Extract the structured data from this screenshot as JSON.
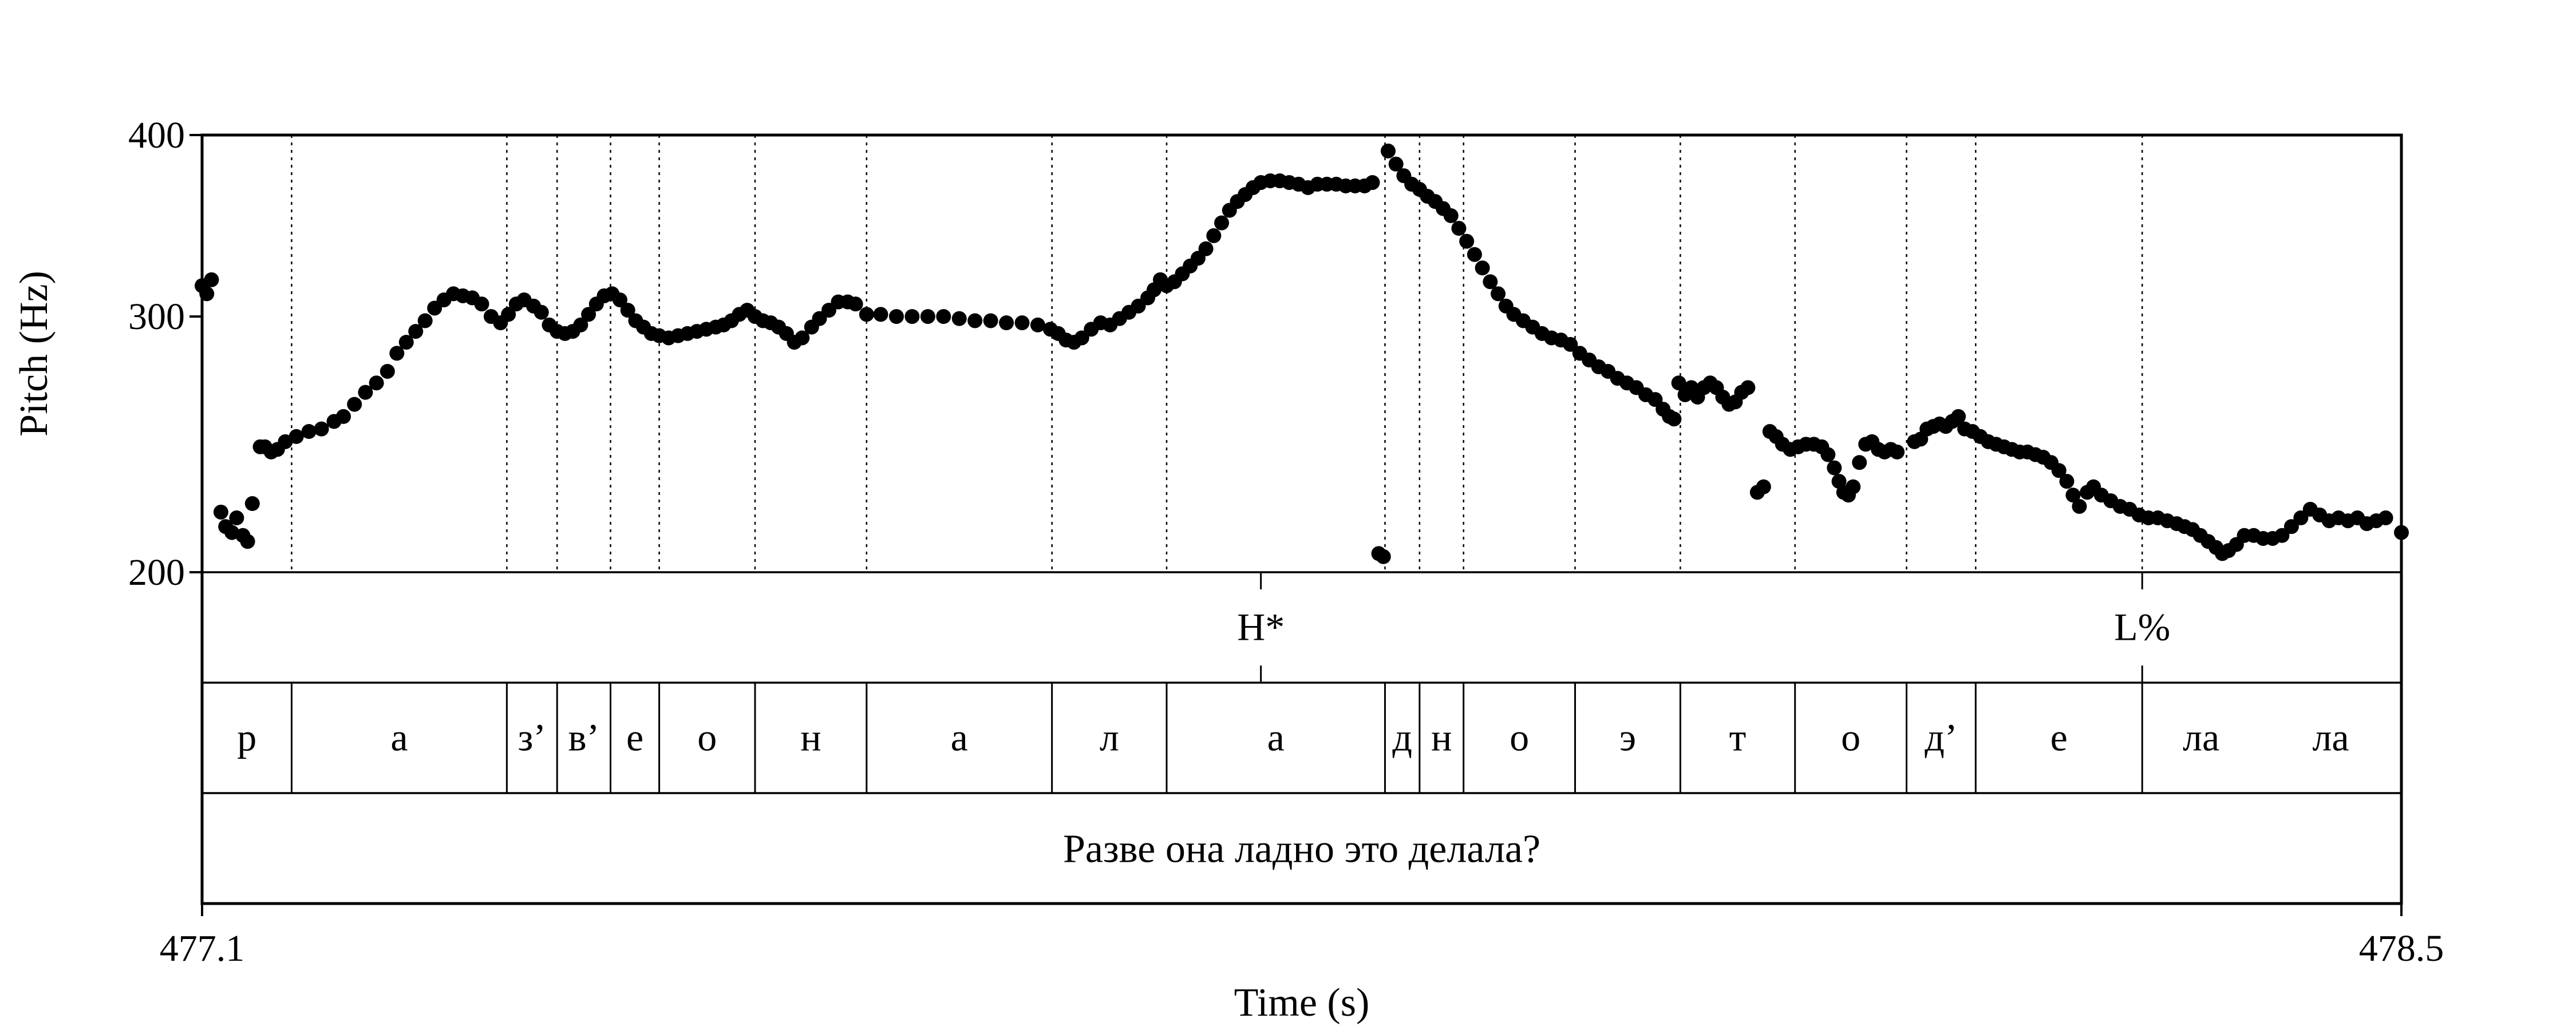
{
  "chart_data": {
    "type": "scatter",
    "xlabel": "Time (s)",
    "ylabel": "Pitch (Hz)",
    "xlim": [
      477.1,
      478.5
    ],
    "ylim": [
      200,
      400
    ],
    "y_scale": "log",
    "y_ticks": [
      200,
      300,
      400
    ],
    "y_tick_labels": [
      "200",
      "300",
      "400"
    ],
    "x_tick_labels": [
      "477.1",
      "478.5"
    ],
    "boundaries": [
      477.157,
      477.294,
      477.326,
      477.36,
      477.391,
      477.452,
      477.523,
      477.641,
      477.714,
      477.853,
      477.875,
      477.903,
      477.974,
      478.041,
      478.114,
      478.185,
      478.229,
      478.335
    ],
    "tones": [
      {
        "label": "H*",
        "time": 477.774
      },
      {
        "label": "L%",
        "time": 478.335
      }
    ],
    "segments": [
      {
        "label": "р",
        "start": 477.1,
        "end": 477.157
      },
      {
        "label": "а",
        "start": 477.157,
        "end": 477.294
      },
      {
        "label": "з’",
        "start": 477.294,
        "end": 477.326
      },
      {
        "label": "в’",
        "start": 477.326,
        "end": 477.36
      },
      {
        "label": "е",
        "start": 477.36,
        "end": 477.391
      },
      {
        "label": "о",
        "start": 477.391,
        "end": 477.452
      },
      {
        "label": "н",
        "start": 477.452,
        "end": 477.523
      },
      {
        "label": "а",
        "start": 477.523,
        "end": 477.641
      },
      {
        "label": "л",
        "start": 477.641,
        "end": 477.714
      },
      {
        "label": "а",
        "start": 477.714,
        "end": 477.853
      },
      {
        "label": "д",
        "start": 477.853,
        "end": 477.875
      },
      {
        "label": "н",
        "start": 477.875,
        "end": 477.903
      },
      {
        "label": "о",
        "start": 477.903,
        "end": 477.974
      },
      {
        "label": "э",
        "start": 477.974,
        "end": 478.041
      },
      {
        "label": "т",
        "start": 478.041,
        "end": 478.114
      },
      {
        "label": "о",
        "start": 478.114,
        "end": 478.185
      },
      {
        "label": "д’",
        "start": 478.185,
        "end": 478.229
      },
      {
        "label": "е",
        "start": 478.229,
        "end": 478.335
      },
      {
        "label": "ла",
        "start": 478.335,
        "end": 478.41
      },
      {
        "label": "ла",
        "start": 478.41,
        "end": 478.5
      }
    ],
    "sentence": "Разве она ладно это делала?",
    "pitch_points": [
      [
        477.1,
        315
      ],
      [
        477.103,
        311
      ],
      [
        477.106,
        318
      ],
      [
        477.112,
        220
      ],
      [
        477.115,
        215
      ],
      [
        477.119,
        213
      ],
      [
        477.122,
        218
      ],
      [
        477.126,
        212
      ],
      [
        477.129,
        210
      ],
      [
        477.132,
        223
      ],
      [
        477.137,
        244
      ],
      [
        477.14,
        244
      ],
      [
        477.144,
        242
      ],
      [
        477.148,
        243
      ],
      [
        477.153,
        246
      ],
      [
        477.16,
        248
      ],
      [
        477.168,
        250
      ],
      [
        477.176,
        251
      ],
      [
        477.184,
        254
      ],
      [
        477.19,
        256
      ],
      [
        477.197,
        261
      ],
      [
        477.204,
        266
      ],
      [
        477.211,
        270
      ],
      [
        477.218,
        275
      ],
      [
        477.224,
        283
      ],
      [
        477.23,
        288
      ],
      [
        477.236,
        293
      ],
      [
        477.242,
        298
      ],
      [
        477.248,
        304
      ],
      [
        477.254,
        308
      ],
      [
        477.26,
        311
      ],
      [
        477.266,
        310
      ],
      [
        477.272,
        309
      ],
      [
        477.278,
        306
      ],
      [
        477.284,
        300
      ],
      [
        477.29,
        297
      ],
      [
        477.295,
        301
      ],
      [
        477.3,
        306
      ],
      [
        477.305,
        308
      ],
      [
        477.311,
        305
      ],
      [
        477.316,
        302
      ],
      [
        477.321,
        296
      ],
      [
        477.326,
        293
      ],
      [
        477.331,
        292
      ],
      [
        477.336,
        293
      ],
      [
        477.341,
        296
      ],
      [
        477.346,
        301
      ],
      [
        477.351,
        306
      ],
      [
        477.356,
        310
      ],
      [
        477.361,
        311
      ],
      [
        477.366,
        308
      ],
      [
        477.371,
        303
      ],
      [
        477.376,
        298
      ],
      [
        477.381,
        295
      ],
      [
        477.386,
        292
      ],
      [
        477.391,
        291
      ],
      [
        477.397,
        290
      ],
      [
        477.403,
        291
      ],
      [
        477.409,
        292
      ],
      [
        477.415,
        293
      ],
      [
        477.421,
        294
      ],
      [
        477.427,
        295
      ],
      [
        477.432,
        296
      ],
      [
        477.437,
        298
      ],
      [
        477.442,
        301
      ],
      [
        477.447,
        303
      ],
      [
        477.452,
        300
      ],
      [
        477.457,
        298
      ],
      [
        477.462,
        297
      ],
      [
        477.467,
        295
      ],
      [
        477.472,
        292
      ],
      [
        477.477,
        288
      ],
      [
        477.482,
        290
      ],
      [
        477.488,
        295
      ],
      [
        477.493,
        299
      ],
      [
        477.499,
        303
      ],
      [
        477.505,
        307
      ],
      [
        477.511,
        307
      ],
      [
        477.516,
        306
      ],
      [
        477.523,
        301
      ],
      [
        477.532,
        301
      ],
      [
        477.542,
        300
      ],
      [
        477.552,
        300
      ],
      [
        477.562,
        300
      ],
      [
        477.572,
        300
      ],
      [
        477.582,
        299
      ],
      [
        477.592,
        298
      ],
      [
        477.602,
        298
      ],
      [
        477.612,
        297
      ],
      [
        477.622,
        297
      ],
      [
        477.632,
        296
      ],
      [
        477.64,
        294
      ],
      [
        477.645,
        292
      ],
      [
        477.65,
        289
      ],
      [
        477.655,
        288
      ],
      [
        477.66,
        290
      ],
      [
        477.666,
        294
      ],
      [
        477.672,
        297
      ],
      [
        477.678,
        296
      ],
      [
        477.684,
        299
      ],
      [
        477.69,
        302
      ],
      [
        477.696,
        305
      ],
      [
        477.702,
        309
      ],
      [
        477.706,
        313
      ],
      [
        477.71,
        318
      ],
      [
        477.714,
        315
      ],
      [
        477.719,
        317
      ],
      [
        477.724,
        321
      ],
      [
        477.729,
        325
      ],
      [
        477.734,
        329
      ],
      [
        477.739,
        334
      ],
      [
        477.744,
        341
      ],
      [
        477.749,
        348
      ],
      [
        477.754,
        355
      ],
      [
        477.759,
        360
      ],
      [
        477.764,
        364
      ],
      [
        477.769,
        368
      ],
      [
        477.774,
        371
      ],
      [
        477.78,
        372
      ],
      [
        477.786,
        372
      ],
      [
        477.792,
        371
      ],
      [
        477.798,
        370
      ],
      [
        477.804,
        368
      ],
      [
        477.81,
        370
      ],
      [
        477.816,
        370
      ],
      [
        477.822,
        370
      ],
      [
        477.828,
        369
      ],
      [
        477.834,
        369
      ],
      [
        477.84,
        369
      ],
      [
        477.845,
        371
      ],
      [
        477.849,
        206
      ],
      [
        477.852,
        205
      ],
      [
        477.855,
        390
      ],
      [
        477.86,
        382
      ],
      [
        477.865,
        375
      ],
      [
        477.87,
        370
      ],
      [
        477.875,
        367
      ],
      [
        477.88,
        363
      ],
      [
        477.885,
        360
      ],
      [
        477.89,
        356
      ],
      [
        477.895,
        352
      ],
      [
        477.9,
        345
      ],
      [
        477.905,
        338
      ],
      [
        477.91,
        331
      ],
      [
        477.915,
        324
      ],
      [
        477.92,
        317
      ],
      [
        477.925,
        311
      ],
      [
        477.93,
        305
      ],
      [
        477.935,
        301
      ],
      [
        477.941,
        298
      ],
      [
        477.947,
        295
      ],
      [
        477.953,
        292
      ],
      [
        477.959,
        290
      ],
      [
        477.965,
        289
      ],
      [
        477.971,
        287
      ],
      [
        477.977,
        283
      ],
      [
        477.983,
        280
      ],
      [
        477.989,
        277
      ],
      [
        477.995,
        275
      ],
      [
        478.001,
        272
      ],
      [
        478.007,
        270
      ],
      [
        478.013,
        268
      ],
      [
        478.019,
        265
      ],
      [
        478.025,
        263
      ],
      [
        478.03,
        259
      ],
      [
        478.034,
        256
      ],
      [
        478.037,
        255
      ],
      [
        478.04,
        270
      ],
      [
        478.044,
        265
      ],
      [
        478.048,
        268
      ],
      [
        478.052,
        264
      ],
      [
        478.056,
        268
      ],
      [
        478.06,
        270
      ],
      [
        478.064,
        268
      ],
      [
        478.068,
        264
      ],
      [
        478.072,
        261
      ],
      [
        478.076,
        262
      ],
      [
        478.08,
        266
      ],
      [
        478.084,
        268
      ],
      [
        478.09,
        227
      ],
      [
        478.094,
        229
      ],
      [
        478.098,
        250
      ],
      [
        478.102,
        248
      ],
      [
        478.106,
        245
      ],
      [
        478.111,
        243
      ],
      [
        478.116,
        244
      ],
      [
        478.121,
        245
      ],
      [
        478.126,
        245
      ],
      [
        478.131,
        244
      ],
      [
        478.135,
        241
      ],
      [
        478.139,
        236
      ],
      [
        478.142,
        231
      ],
      [
        478.145,
        227
      ],
      [
        478.148,
        226
      ],
      [
        478.151,
        229
      ],
      [
        478.155,
        238
      ],
      [
        478.159,
        245
      ],
      [
        478.163,
        246
      ],
      [
        478.167,
        243
      ],
      [
        478.171,
        242
      ],
      [
        478.175,
        243
      ],
      [
        478.179,
        242
      ],
      [
        478.19,
        246
      ],
      [
        478.194,
        247
      ],
      [
        478.198,
        251
      ],
      [
        478.202,
        252
      ],
      [
        478.206,
        253
      ],
      [
        478.21,
        252
      ],
      [
        478.214,
        254
      ],
      [
        478.218,
        256
      ],
      [
        478.222,
        251
      ],
      [
        478.227,
        250
      ],
      [
        478.232,
        248
      ],
      [
        478.237,
        246
      ],
      [
        478.242,
        245
      ],
      [
        478.247,
        244
      ],
      [
        478.252,
        243
      ],
      [
        478.257,
        242
      ],
      [
        478.262,
        242
      ],
      [
        478.267,
        241
      ],
      [
        478.272,
        240
      ],
      [
        478.277,
        238
      ],
      [
        478.282,
        235
      ],
      [
        478.287,
        231
      ],
      [
        478.291,
        226
      ],
      [
        478.295,
        222
      ],
      [
        478.3,
        227
      ],
      [
        478.304,
        229
      ],
      [
        478.309,
        226
      ],
      [
        478.315,
        224
      ],
      [
        478.321,
        222
      ],
      [
        478.327,
        221
      ],
      [
        478.333,
        219
      ],
      [
        478.339,
        218
      ],
      [
        478.345,
        218
      ],
      [
        478.351,
        217
      ],
      [
        478.357,
        216
      ],
      [
        478.362,
        215
      ],
      [
        478.367,
        214
      ],
      [
        478.372,
        212
      ],
      [
        478.377,
        210
      ],
      [
        478.382,
        208
      ],
      [
        478.386,
        206
      ],
      [
        478.39,
        207
      ],
      [
        478.395,
        209
      ],
      [
        478.4,
        212
      ],
      [
        478.406,
        212
      ],
      [
        478.412,
        211
      ],
      [
        478.418,
        211
      ],
      [
        478.424,
        212
      ],
      [
        478.43,
        215
      ],
      [
        478.436,
        218
      ],
      [
        478.442,
        221
      ],
      [
        478.448,
        219
      ],
      [
        478.454,
        217
      ],
      [
        478.46,
        218
      ],
      [
        478.466,
        217
      ],
      [
        478.472,
        218
      ],
      [
        478.478,
        216
      ],
      [
        478.484,
        217
      ],
      [
        478.49,
        218
      ],
      [
        478.5,
        213
      ]
    ]
  }
}
